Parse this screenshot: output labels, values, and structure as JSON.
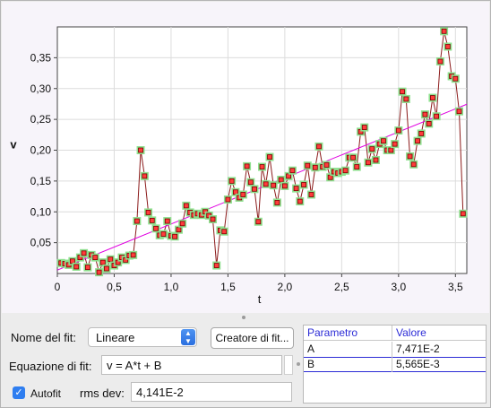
{
  "chart_data": {
    "type": "scatter",
    "xlabel": "t",
    "ylabel": "v",
    "xlim": [
      0,
      3.6
    ],
    "ylim": [
      0,
      0.4
    ],
    "xticks": [
      "0",
      "0,5",
      "1,0",
      "1,5",
      "2,0",
      "2,5",
      "3,0",
      "3,5"
    ],
    "xtick_values": [
      0,
      0.5,
      1.0,
      1.5,
      2.0,
      2.5,
      3.0,
      3.5
    ],
    "yticks": [
      "0,05",
      "0,10",
      "0,15",
      "0,20",
      "0,25",
      "0,30",
      "0,35"
    ],
    "ytick_values": [
      0.05,
      0.1,
      0.15,
      0.2,
      0.25,
      0.3,
      0.35
    ],
    "grid": true,
    "points": [
      [
        0.033,
        0.017
      ],
      [
        0.067,
        0.016
      ],
      [
        0.1,
        0.014
      ],
      [
        0.133,
        0.02
      ],
      [
        0.167,
        0.011
      ],
      [
        0.2,
        0.026
      ],
      [
        0.233,
        0.033
      ],
      [
        0.267,
        0.01
      ],
      [
        0.3,
        0.03
      ],
      [
        0.333,
        0.026
      ],
      [
        0.367,
        0.002
      ],
      [
        0.4,
        0.018
      ],
      [
        0.433,
        0.008
      ],
      [
        0.467,
        0.023
      ],
      [
        0.5,
        0.013
      ],
      [
        0.533,
        0.018
      ],
      [
        0.567,
        0.026
      ],
      [
        0.6,
        0.022
      ],
      [
        0.633,
        0.029
      ],
      [
        0.667,
        0.03
      ],
      [
        0.7,
        0.085
      ],
      [
        0.733,
        0.2
      ],
      [
        0.767,
        0.158
      ],
      [
        0.8,
        0.099
      ],
      [
        0.833,
        0.086
      ],
      [
        0.867,
        0.073
      ],
      [
        0.9,
        0.062
      ],
      [
        0.933,
        0.064
      ],
      [
        0.967,
        0.085
      ],
      [
        1.0,
        0.061
      ],
      [
        1.033,
        0.06
      ],
      [
        1.067,
        0.071
      ],
      [
        1.1,
        0.081
      ],
      [
        1.133,
        0.11
      ],
      [
        1.167,
        0.099
      ],
      [
        1.2,
        0.095
      ],
      [
        1.233,
        0.097
      ],
      [
        1.267,
        0.095
      ],
      [
        1.3,
        0.1
      ],
      [
        1.333,
        0.094
      ],
      [
        1.367,
        0.088
      ],
      [
        1.4,
        0.013
      ],
      [
        1.433,
        0.07
      ],
      [
        1.467,
        0.068
      ],
      [
        1.5,
        0.12
      ],
      [
        1.533,
        0.15
      ],
      [
        1.567,
        0.132
      ],
      [
        1.6,
        0.123
      ],
      [
        1.633,
        0.128
      ],
      [
        1.667,
        0.174
      ],
      [
        1.7,
        0.148
      ],
      [
        1.733,
        0.137
      ],
      [
        1.767,
        0.084
      ],
      [
        1.8,
        0.173
      ],
      [
        1.833,
        0.145
      ],
      [
        1.867,
        0.189
      ],
      [
        1.9,
        0.143
      ],
      [
        1.933,
        0.115
      ],
      [
        1.967,
        0.152
      ],
      [
        2.0,
        0.142
      ],
      [
        2.033,
        0.158
      ],
      [
        2.067,
        0.167
      ],
      [
        2.1,
        0.138
      ],
      [
        2.133,
        0.117
      ],
      [
        2.167,
        0.144
      ],
      [
        2.2,
        0.175
      ],
      [
        2.233,
        0.128
      ],
      [
        2.267,
        0.172
      ],
      [
        2.3,
        0.206
      ],
      [
        2.333,
        0.173
      ],
      [
        2.367,
        0.176
      ],
      [
        2.4,
        0.156
      ],
      [
        2.433,
        0.165
      ],
      [
        2.467,
        0.163
      ],
      [
        2.5,
        0.165
      ],
      [
        2.533,
        0.167
      ],
      [
        2.567,
        0.188
      ],
      [
        2.6,
        0.188
      ],
      [
        2.633,
        0.173
      ],
      [
        2.667,
        0.23
      ],
      [
        2.7,
        0.237
      ],
      [
        2.733,
        0.18
      ],
      [
        2.767,
        0.202
      ],
      [
        2.8,
        0.184
      ],
      [
        2.833,
        0.21
      ],
      [
        2.867,
        0.215
      ],
      [
        2.9,
        0.2
      ],
      [
        2.933,
        0.2
      ],
      [
        2.967,
        0.21
      ],
      [
        3.0,
        0.232
      ],
      [
        3.033,
        0.295
      ],
      [
        3.067,
        0.283
      ],
      [
        3.1,
        0.19
      ],
      [
        3.133,
        0.177
      ],
      [
        3.167,
        0.215
      ],
      [
        3.2,
        0.227
      ],
      [
        3.233,
        0.258
      ],
      [
        3.267,
        0.243
      ],
      [
        3.3,
        0.285
      ],
      [
        3.333,
        0.255
      ],
      [
        3.367,
        0.344
      ],
      [
        3.4,
        0.393
      ],
      [
        3.433,
        0.368
      ],
      [
        3.467,
        0.32
      ],
      [
        3.5,
        0.316
      ],
      [
        3.533,
        0.263
      ],
      [
        3.567,
        0.097
      ]
    ],
    "fit": {
      "A": 0.07471,
      "B": 0.005565
    }
  },
  "panel": {
    "fit_name_label": "Nome del fit:",
    "fit_name_value": "Lineare",
    "creator_button_label": "Creatore di fit...",
    "equation_label": "Equazione di fit:",
    "equation_value": "v = A*t + B",
    "autofit_label": "Autofit",
    "autofit_checked": true,
    "rms_label": "rms dev:",
    "rms_value": "4,141E-2"
  },
  "table": {
    "headers": [
      "Parametro",
      "Valore"
    ],
    "rows": [
      {
        "param": "A",
        "value": "7,471E-2"
      },
      {
        "param": "B",
        "value": "5,565E-3"
      }
    ]
  }
}
